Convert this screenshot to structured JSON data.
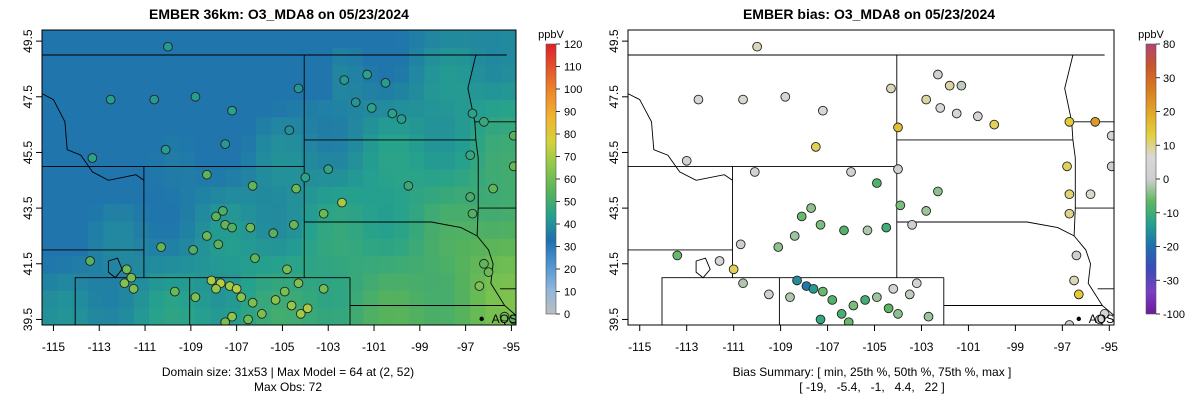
{
  "chart_data": [
    {
      "type": "heatmap",
      "title": "EMBER 36km: O3_MDA8 on 05/23/2024",
      "x_ticks": [
        "-115",
        "-113",
        "-111",
        "-109",
        "-107",
        "-105",
        "-103",
        "-101",
        "-99",
        "-97",
        "-95"
      ],
      "y_ticks": [
        "39.5",
        "41.5",
        "43.5",
        "45.5",
        "47.5",
        "49.5"
      ],
      "xlim": [
        -115.5,
        -94.8
      ],
      "ylim": [
        39.3,
        49.9
      ],
      "colorbar": {
        "unit": "ppbV",
        "ticks": [
          "0",
          "10",
          "20",
          "30",
          "40",
          "50",
          "60",
          "70",
          "80",
          "90",
          "100",
          "110",
          "120"
        ],
        "range": [
          0,
          120
        ],
        "stops": [
          "#bdbdbd",
          "#8fb5dd",
          "#4f95cf",
          "#1f6fb0",
          "#25a18e",
          "#58b35a",
          "#8cc84b",
          "#d4d23b",
          "#f0b530",
          "#ef8a2a",
          "#e3552d",
          "#e01f2a"
        ]
      },
      "caption_lines": [
        "Domain size: 31x53 | Max Model = 64 at (2, 52)",
        "Max Obs: 72"
      ],
      "city_label": "AQS",
      "city_point": {
        "lon": -96.3,
        "lat": 39.52
      },
      "model_grid_note": "model values roughly 38-50 ppbV in the north/west rising to ~60-64 ppbV in the south-east",
      "observations": [
        {
          "lon": -110.0,
          "lat": 49.3,
          "value": 42
        },
        {
          "lon": -112.5,
          "lat": 47.4,
          "value": 43
        },
        {
          "lon": -110.6,
          "lat": 47.4,
          "value": 42
        },
        {
          "lon": -108.8,
          "lat": 47.5,
          "value": 43
        },
        {
          "lon": -107.2,
          "lat": 47.0,
          "value": 44
        },
        {
          "lon": -104.3,
          "lat": 47.8,
          "value": 41
        },
        {
          "lon": -102.3,
          "lat": 48.1,
          "value": 42
        },
        {
          "lon": -101.3,
          "lat": 48.3,
          "value": 44
        },
        {
          "lon": -100.5,
          "lat": 48.0,
          "value": 43
        },
        {
          "lon": -101.8,
          "lat": 47.3,
          "value": 41
        },
        {
          "lon": -101.1,
          "lat": 47.1,
          "value": 44
        },
        {
          "lon": -100.2,
          "lat": 46.9,
          "value": 44
        },
        {
          "lon": -99.8,
          "lat": 46.7,
          "value": 43
        },
        {
          "lon": -104.7,
          "lat": 46.3,
          "value": 40
        },
        {
          "lon": -107.5,
          "lat": 45.8,
          "value": 42
        },
        {
          "lon": -113.3,
          "lat": 45.3,
          "value": 45
        },
        {
          "lon": -110.1,
          "lat": 45.6,
          "value": 43
        },
        {
          "lon": -104.0,
          "lat": 44.6,
          "value": 45
        },
        {
          "lon": -103.0,
          "lat": 44.9,
          "value": 46
        },
        {
          "lon": -99.5,
          "lat": 44.3,
          "value": 48
        },
        {
          "lon": -96.7,
          "lat": 46.9,
          "value": 45
        },
        {
          "lon": -96.2,
          "lat": 46.6,
          "value": 48
        },
        {
          "lon": -96.8,
          "lat": 45.4,
          "value": 47
        },
        {
          "lon": -96.8,
          "lat": 43.9,
          "value": 51
        },
        {
          "lon": -96.7,
          "lat": 43.3,
          "value": 53
        },
        {
          "lon": -95.8,
          "lat": 44.2,
          "value": 56
        },
        {
          "lon": -94.9,
          "lat": 46.1,
          "value": 54
        },
        {
          "lon": -94.9,
          "lat": 45.0,
          "value": 58
        },
        {
          "lon": -96.2,
          "lat": 41.5,
          "value": 56
        },
        {
          "lon": -96.0,
          "lat": 41.2,
          "value": 58
        },
        {
          "lon": -96.4,
          "lat": 40.7,
          "value": 62
        },
        {
          "lon": -94.9,
          "lat": 39.5,
          "value": 55
        },
        {
          "lon": -95.3,
          "lat": 39.6,
          "value": 60
        },
        {
          "lon": -108.3,
          "lat": 44.7,
          "value": 55
        },
        {
          "lon": -106.3,
          "lat": 44.3,
          "value": 56
        },
        {
          "lon": -104.4,
          "lat": 44.2,
          "value": 58
        },
        {
          "lon": -102.4,
          "lat": 43.7,
          "value": 69
        },
        {
          "lon": -103.2,
          "lat": 43.3,
          "value": 58
        },
        {
          "lon": -107.6,
          "lat": 43.4,
          "value": 52
        },
        {
          "lon": -107.9,
          "lat": 43.2,
          "value": 55
        },
        {
          "lon": -107.5,
          "lat": 42.9,
          "value": 56
        },
        {
          "lon": -107.2,
          "lat": 42.8,
          "value": 53
        },
        {
          "lon": -108.3,
          "lat": 42.5,
          "value": 58
        },
        {
          "lon": -106.4,
          "lat": 42.8,
          "value": 59
        },
        {
          "lon": -105.4,
          "lat": 42.6,
          "value": 54
        },
        {
          "lon": -104.5,
          "lat": 42.9,
          "value": 57
        },
        {
          "lon": -104.8,
          "lat": 41.3,
          "value": 60
        },
        {
          "lon": -106.2,
          "lat": 41.7,
          "value": 56
        },
        {
          "lon": -107.8,
          "lat": 42.2,
          "value": 55
        },
        {
          "lon": -108.9,
          "lat": 42.0,
          "value": 53
        },
        {
          "lon": -113.4,
          "lat": 41.6,
          "value": 54
        },
        {
          "lon": -110.3,
          "lat": 42.1,
          "value": 56
        },
        {
          "lon": -111.8,
          "lat": 41.3,
          "value": 59
        },
        {
          "lon": -111.6,
          "lat": 41.0,
          "value": 61
        },
        {
          "lon": -111.9,
          "lat": 40.8,
          "value": 63
        },
        {
          "lon": -111.5,
          "lat": 40.6,
          "value": 62
        },
        {
          "lon": -109.7,
          "lat": 40.5,
          "value": 58
        },
        {
          "lon": -108.8,
          "lat": 40.3,
          "value": 62
        },
        {
          "lon": -108.1,
          "lat": 40.9,
          "value": 70
        },
        {
          "lon": -107.7,
          "lat": 40.8,
          "value": 72
        },
        {
          "lon": -107.3,
          "lat": 40.7,
          "value": 68
        },
        {
          "lon": -107.9,
          "lat": 40.6,
          "value": 66
        },
        {
          "lon": -107.0,
          "lat": 40.6,
          "value": 71
        },
        {
          "lon": -106.8,
          "lat": 40.3,
          "value": 64
        },
        {
          "lon": -106.3,
          "lat": 40.1,
          "value": 62
        },
        {
          "lon": -105.3,
          "lat": 40.2,
          "value": 64
        },
        {
          "lon": -104.9,
          "lat": 40.5,
          "value": 61
        },
        {
          "lon": -104.6,
          "lat": 40.0,
          "value": 66
        },
        {
          "lon": -104.2,
          "lat": 39.7,
          "value": 68
        },
        {
          "lon": -103.9,
          "lat": 39.9,
          "value": 70
        },
        {
          "lon": -104.3,
          "lat": 40.8,
          "value": 62
        },
        {
          "lon": -103.2,
          "lat": 40.6,
          "value": 60
        },
        {
          "lon": -105.9,
          "lat": 39.7,
          "value": 62
        },
        {
          "lon": -107.2,
          "lat": 39.6,
          "value": 65
        },
        {
          "lon": -106.5,
          "lat": 39.5,
          "value": 59
        },
        {
          "lon": -107.5,
          "lat": 39.4,
          "value": 61
        }
      ]
    },
    {
      "type": "scatter",
      "title": "EMBER bias: O3_MDA8 on 05/23/2024",
      "x_ticks": [
        "-115",
        "-113",
        "-111",
        "-109",
        "-107",
        "-105",
        "-103",
        "-101",
        "-99",
        "-97",
        "-95"
      ],
      "y_ticks": [
        "39.5",
        "41.5",
        "43.5",
        "45.5",
        "47.5",
        "49.5"
      ],
      "xlim": [
        -115.5,
        -94.8
      ],
      "ylim": [
        39.3,
        49.9
      ],
      "colorbar": {
        "unit": "ppbV",
        "ticks": [
          "-100",
          "-30",
          "-20",
          "-10",
          "0",
          "10",
          "20",
          "30",
          "80"
        ],
        "stops": [
          "#6a1b9a",
          "#7b3fc4",
          "#3a4bb8",
          "#1f6fb0",
          "#25a18e",
          "#5db85f",
          "#cfcfcf",
          "#d8d8d8",
          "#e3cf3a",
          "#e0a52a",
          "#d97b1f",
          "#c9562b",
          "#b2446e"
        ]
      },
      "caption_lines": [
        "Bias Summary: [ min, 25th %, 50th %, 75th %, max ]",
        "[ -19,   -5.4,   -1,   4.4,   22 ]"
      ],
      "city_label": "AQS",
      "city_point": {
        "lon": -96.3,
        "lat": 39.52
      },
      "observations": [
        {
          "lon": -110.0,
          "lat": 49.3,
          "bias": 8
        },
        {
          "lon": -112.5,
          "lat": 47.4,
          "bias": 6
        },
        {
          "lon": -110.6,
          "lat": 47.4,
          "bias": 7
        },
        {
          "lon": -108.8,
          "lat": 47.5,
          "bias": 5
        },
        {
          "lon": -107.2,
          "lat": 47.0,
          "bias": 6
        },
        {
          "lon": -104.3,
          "lat": 47.8,
          "bias": 8
        },
        {
          "lon": -102.3,
          "lat": 48.3,
          "bias": 0
        },
        {
          "lon": -101.3,
          "lat": 47.9,
          "bias": -1
        },
        {
          "lon": -102.8,
          "lat": 47.4,
          "bias": 9
        },
        {
          "lon": -102.2,
          "lat": 47.1,
          "bias": 6
        },
        {
          "lon": -101.5,
          "lat": 46.9,
          "bias": 5
        },
        {
          "lon": -100.6,
          "lat": 46.8,
          "bias": 4
        },
        {
          "lon": -99.9,
          "lat": 46.5,
          "bias": 12
        },
        {
          "lon": -104.0,
          "lat": 46.4,
          "bias": 16
        },
        {
          "lon": -107.5,
          "lat": 45.7,
          "bias": 12
        },
        {
          "lon": -113.0,
          "lat": 45.2,
          "bias": 3
        },
        {
          "lon": -110.1,
          "lat": 44.8,
          "bias": 2
        },
        {
          "lon": -102.3,
          "lat": 44.1,
          "bias": -4
        },
        {
          "lon": -104.0,
          "lat": 44.9,
          "bias": 1
        },
        {
          "lon": -96.7,
          "lat": 46.6,
          "bias": 14
        },
        {
          "lon": -95.6,
          "lat": 46.6,
          "bias": 22
        },
        {
          "lon": -94.9,
          "lat": 46.1,
          "bias": 3
        },
        {
          "lon": -94.9,
          "lat": 45.0,
          "bias": 0
        },
        {
          "lon": -96.8,
          "lat": 45.0,
          "bias": 12
        },
        {
          "lon": -96.7,
          "lat": 44.0,
          "bias": 11
        },
        {
          "lon": -95.8,
          "lat": 44.0,
          "bias": 7
        },
        {
          "lon": -96.7,
          "lat": 43.3,
          "bias": 10
        },
        {
          "lon": -96.4,
          "lat": 41.8,
          "bias": 0
        },
        {
          "lon": -96.5,
          "lat": 40.9,
          "bias": 8
        },
        {
          "lon": -96.3,
          "lat": 40.4,
          "bias": 14
        },
        {
          "lon": -95.2,
          "lat": 39.7,
          "bias": 4
        },
        {
          "lon": -95.4,
          "lat": 39.5,
          "bias": 6
        },
        {
          "lon": -96.7,
          "lat": 39.3,
          "bias": 0
        },
        {
          "lon": -101.8,
          "lat": 47.9,
          "bias": 9
        },
        {
          "lon": -106.0,
          "lat": 44.8,
          "bias": 2
        },
        {
          "lon": -104.9,
          "lat": 44.4,
          "bias": -8
        },
        {
          "lon": -103.9,
          "lat": 43.6,
          "bias": -5
        },
        {
          "lon": -102.8,
          "lat": 43.4,
          "bias": -3
        },
        {
          "lon": -107.7,
          "lat": 43.5,
          "bias": -4
        },
        {
          "lon": -108.1,
          "lat": 43.2,
          "bias": -6
        },
        {
          "lon": -107.3,
          "lat": 42.9,
          "bias": -5
        },
        {
          "lon": -108.4,
          "lat": 42.5,
          "bias": -3
        },
        {
          "lon": -106.3,
          "lat": 42.7,
          "bias": -8
        },
        {
          "lon": -105.3,
          "lat": 42.7,
          "bias": -2
        },
        {
          "lon": -104.5,
          "lat": 42.8,
          "bias": -10
        },
        {
          "lon": -103.4,
          "lat": 42.9,
          "bias": 0
        },
        {
          "lon": -109.1,
          "lat": 42.1,
          "bias": -4
        },
        {
          "lon": -110.7,
          "lat": 42.2,
          "bias": 0
        },
        {
          "lon": -113.4,
          "lat": 41.8,
          "bias": -6
        },
        {
          "lon": -111.6,
          "lat": 41.6,
          "bias": 5
        },
        {
          "lon": -111.0,
          "lat": 41.3,
          "bias": 12
        },
        {
          "lon": -110.6,
          "lat": 40.8,
          "bias": -2
        },
        {
          "lon": -109.5,
          "lat": 40.4,
          "bias": 1
        },
        {
          "lon": -108.3,
          "lat": 40.9,
          "bias": -16
        },
        {
          "lon": -107.9,
          "lat": 40.7,
          "bias": -19
        },
        {
          "lon": -107.6,
          "lat": 40.6,
          "bias": -14
        },
        {
          "lon": -107.2,
          "lat": 40.5,
          "bias": -6
        },
        {
          "lon": -108.6,
          "lat": 40.3,
          "bias": -2
        },
        {
          "lon": -106.8,
          "lat": 40.2,
          "bias": -8
        },
        {
          "lon": -105.9,
          "lat": 40.0,
          "bias": -5
        },
        {
          "lon": -105.4,
          "lat": 40.2,
          "bias": -10
        },
        {
          "lon": -104.9,
          "lat": 40.3,
          "bias": -3
        },
        {
          "lon": -104.4,
          "lat": 39.9,
          "bias": -7
        },
        {
          "lon": -104.0,
          "lat": 39.7,
          "bias": -4
        },
        {
          "lon": -104.2,
          "lat": 40.6,
          "bias": 2
        },
        {
          "lon": -103.5,
          "lat": 40.4,
          "bias": -1
        },
        {
          "lon": -103.2,
          "lat": 40.8,
          "bias": 3
        },
        {
          "lon": -106.4,
          "lat": 39.7,
          "bias": -9
        },
        {
          "lon": -107.3,
          "lat": 39.5,
          "bias": -12
        },
        {
          "lon": -106.1,
          "lat": 39.4,
          "bias": -6
        },
        {
          "lon": -102.7,
          "lat": 39.6,
          "bias": -3
        }
      ]
    }
  ]
}
